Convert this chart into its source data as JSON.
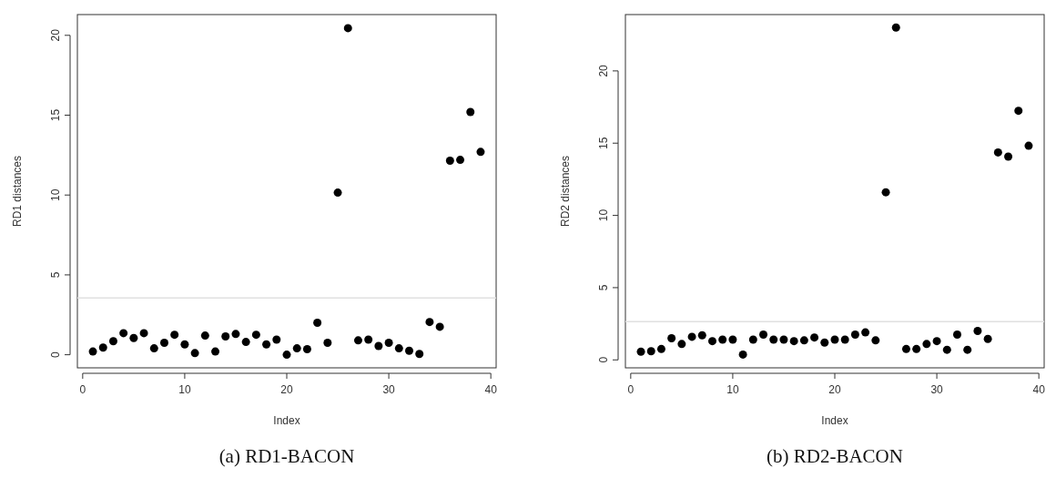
{
  "chart_data": [
    {
      "type": "scatter",
      "title": "(a) RD1-BACON",
      "xlabel": "Index",
      "ylabel": "RD1 distances",
      "marker": "circle",
      "grid": false,
      "x": [
        1,
        2,
        3,
        4,
        5,
        6,
        7,
        8,
        9,
        10,
        11,
        12,
        13,
        14,
        15,
        16,
        17,
        18,
        19,
        20,
        21,
        22,
        23,
        24,
        25,
        26,
        27,
        28,
        29,
        30,
        31,
        32,
        33,
        34,
        35,
        36,
        37,
        38,
        39
      ],
      "series": [
        {
          "color": "#000000",
          "values": [
            0.2,
            0.45,
            0.85,
            1.35,
            1.05,
            1.35,
            0.4,
            0.75,
            1.25,
            0.65,
            0.1,
            1.2,
            0.2,
            1.15,
            1.3,
            0.8,
            1.25,
            0.65,
            0.95,
            0.0,
            0.4,
            0.35,
            2.0,
            0.75,
            10.15,
            20.45,
            0.9,
            0.95,
            0.55,
            0.75,
            0.4,
            0.25,
            0.05,
            2.05,
            1.75,
            12.15,
            12.2,
            15.2,
            12.7
          ]
        }
      ],
      "xlim": [
        -0.52,
        40.52
      ],
      "ylim": [
        -0.82,
        21.3
      ],
      "xticks": [
        0,
        10,
        20,
        30,
        40
      ],
      "yticks": [
        0,
        5,
        10,
        15,
        20
      ],
      "ref_lines": [
        {
          "axis": "y",
          "value": 3.55,
          "color": "#e0e0e0"
        }
      ]
    },
    {
      "type": "scatter",
      "title": "(b) RD2-BACON",
      "xlabel": "Index",
      "ylabel": "RD2 distances",
      "marker": "circle",
      "grid": false,
      "x": [
        1,
        2,
        3,
        4,
        5,
        6,
        7,
        8,
        9,
        10,
        11,
        12,
        13,
        14,
        15,
        16,
        17,
        18,
        19,
        20,
        21,
        22,
        23,
        24,
        25,
        26,
        27,
        28,
        29,
        30,
        31,
        32,
        33,
        34,
        35,
        36,
        37,
        38,
        39
      ],
      "series": [
        {
          "color": "#000000",
          "values": [
            0.57,
            0.6,
            0.75,
            1.5,
            1.1,
            1.6,
            1.7,
            1.3,
            1.4,
            1.4,
            0.37,
            1.4,
            1.75,
            1.4,
            1.4,
            1.3,
            1.35,
            1.55,
            1.2,
            1.4,
            1.4,
            1.75,
            1.9,
            1.35,
            11.6,
            23.0,
            0.75,
            0.75,
            1.1,
            1.3,
            0.7,
            1.75,
            0.7,
            2.0,
            1.45,
            14.36,
            14.07,
            17.24,
            14.82
          ]
        }
      ],
      "xlim": [
        -0.52,
        40.52
      ],
      "ylim": [
        -0.55,
        23.9
      ],
      "xticks": [
        0,
        10,
        20,
        30,
        40
      ],
      "yticks": [
        0,
        5,
        10,
        15,
        20
      ],
      "ref_lines": [
        {
          "axis": "y",
          "value": 2.65,
          "color": "#e0e0e0"
        }
      ]
    }
  ]
}
